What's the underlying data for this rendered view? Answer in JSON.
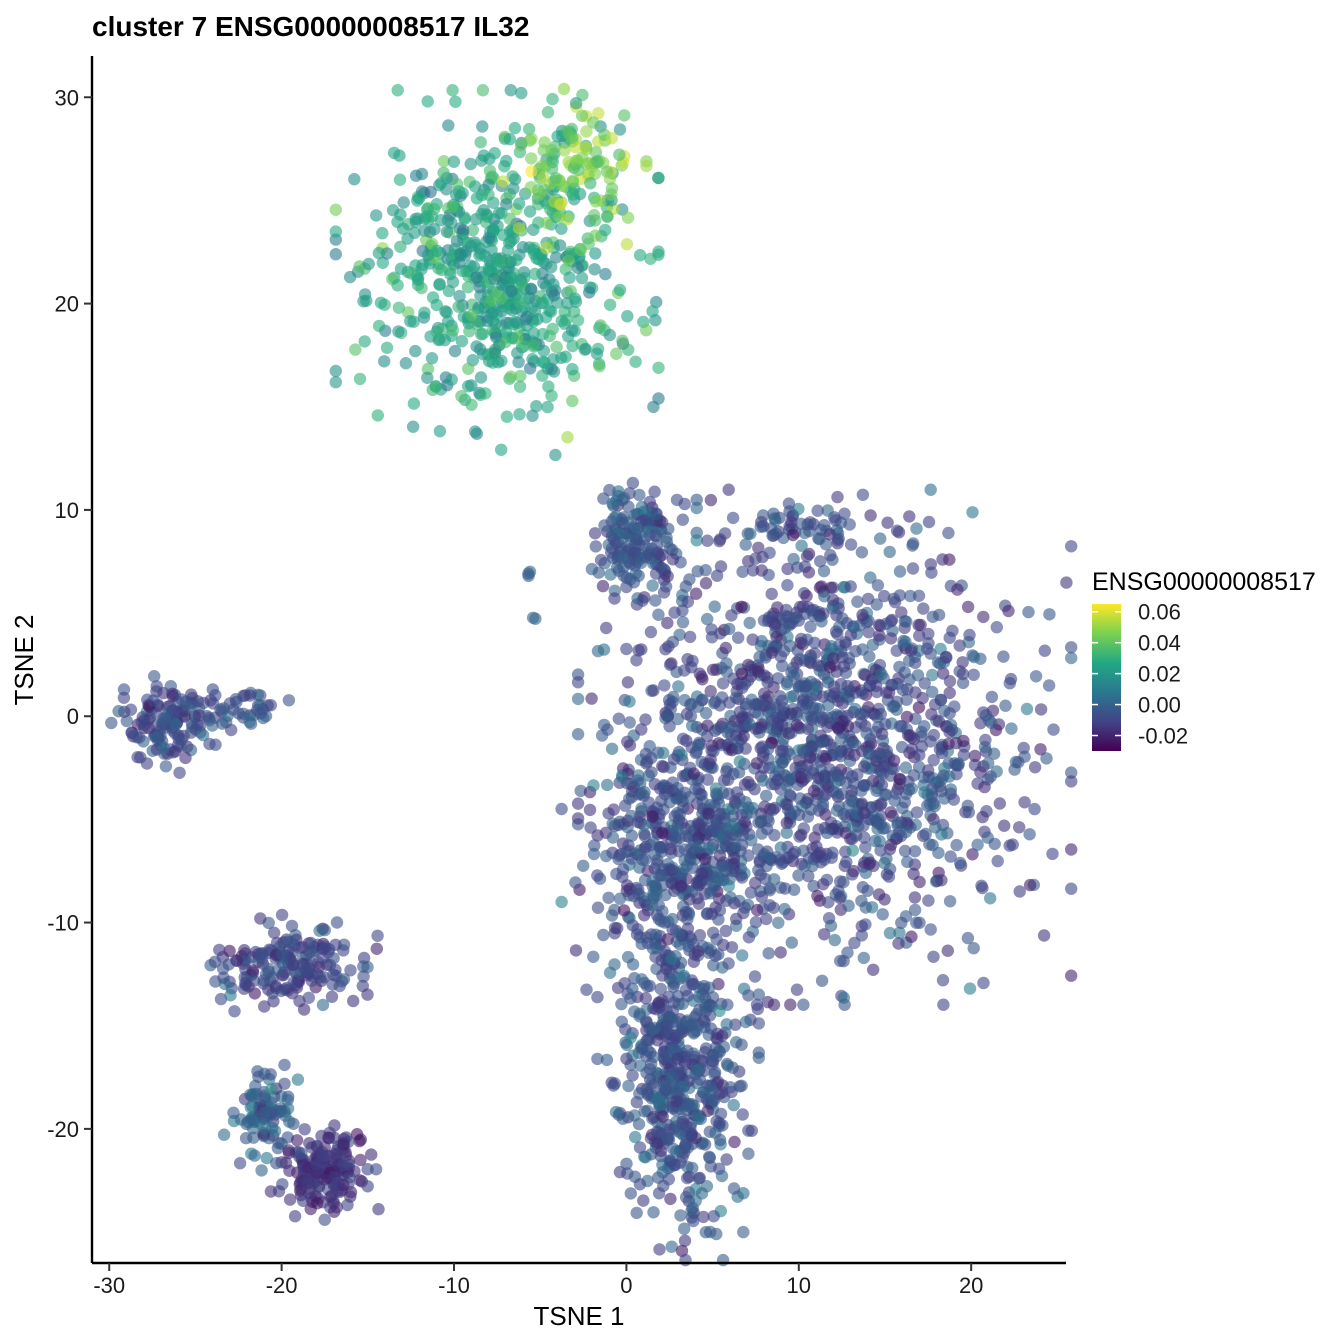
{
  "chart_data": {
    "type": "scatter",
    "title": "cluster 7 ENSG00000008517 IL32",
    "xlabel": "TSNE 1",
    "ylabel": "TSNE 2",
    "xlim": [
      -31,
      25.5
    ],
    "ylim": [
      -26.5,
      32
    ],
    "x_ticks": [
      -30,
      -20,
      -10,
      0,
      10,
      20
    ],
    "x_tick_labels": [
      "-30",
      "-20",
      "-10",
      "0",
      "10",
      "20"
    ],
    "y_ticks": [
      -20,
      -10,
      0,
      10,
      20,
      30
    ],
    "y_tick_labels": [
      "-20",
      "-10",
      "0",
      "10",
      "20",
      "30"
    ],
    "grid": false,
    "legend": {
      "title": "ENSG00000008517",
      "position": "right",
      "type": "colorbar",
      "colormap": "viridis",
      "range": [
        -0.03,
        0.065
      ],
      "breaks": [
        0.06,
        0.04,
        0.02,
        0.0,
        -0.02
      ],
      "break_labels": [
        "0.06",
        "0.04",
        "0.02",
        "0.00",
        "-0.02"
      ],
      "colors": [
        "#440154",
        "#414487",
        "#2a788e",
        "#22a884",
        "#7ad151",
        "#fde725"
      ]
    },
    "point_alpha": 0.6,
    "clusters": [
      {
        "cx": -7.5,
        "cy": 21.5,
        "sx": 3.6,
        "sy": 3.4,
        "n": 650,
        "value_mean": 0.025,
        "value_sd": 0.008
      },
      {
        "cx": -3.0,
        "cy": 26.5,
        "sx": 1.6,
        "sy": 1.5,
        "n": 110,
        "value_mean": 0.045,
        "value_sd": 0.008
      },
      {
        "cx": 0.7,
        "cy": 8.5,
        "sx": 1.3,
        "sy": 1.3,
        "n": 170,
        "value_mean": -0.005,
        "value_sd": 0.006
      },
      {
        "cx": -5.5,
        "cy": 6.7,
        "sx": 0.2,
        "sy": 0.2,
        "n": 3,
        "value_mean": 0.0,
        "value_sd": 0.003
      },
      {
        "cx": -5.4,
        "cy": 4.7,
        "sx": 0.1,
        "sy": 0.1,
        "n": 2,
        "value_mean": 0.0,
        "value_sd": 0.002
      },
      {
        "cx": -26.5,
        "cy": -0.4,
        "sx": 1.3,
        "sy": 0.9,
        "n": 130,
        "value_mean": -0.008,
        "value_sd": 0.006
      },
      {
        "cx": -22.5,
        "cy": 0.4,
        "sx": 1.2,
        "sy": 0.5,
        "n": 40,
        "value_mean": -0.005,
        "value_sd": 0.006
      },
      {
        "cx": -19.5,
        "cy": -12.0,
        "sx": 2.1,
        "sy": 1.0,
        "n": 180,
        "value_mean": -0.01,
        "value_sd": 0.006
      },
      {
        "cx": -21.0,
        "cy": -19.3,
        "sx": 0.9,
        "sy": 1.1,
        "n": 90,
        "value_mean": -0.002,
        "value_sd": 0.006
      },
      {
        "cx": -17.5,
        "cy": -21.8,
        "sx": 1.2,
        "sy": 1.0,
        "n": 170,
        "value_mean": -0.016,
        "value_sd": 0.005
      },
      {
        "cx": 11.5,
        "cy": -1.5,
        "sx": 5.5,
        "sy": 4.8,
        "n": 1400,
        "value_mean": -0.008,
        "value_sd": 0.007
      },
      {
        "cx": 3.0,
        "cy": -6.5,
        "sx": 2.6,
        "sy": 2.8,
        "n": 400,
        "value_mean": -0.007,
        "value_sd": 0.007
      },
      {
        "cx": 3.0,
        "cy": -17.0,
        "sx": 1.8,
        "sy": 3.6,
        "n": 550,
        "value_mean": -0.006,
        "value_sd": 0.006
      },
      {
        "cx": 10.0,
        "cy": 9.0,
        "sx": 2.0,
        "sy": 0.8,
        "n": 60,
        "value_mean": -0.008,
        "value_sd": 0.006
      }
    ]
  }
}
